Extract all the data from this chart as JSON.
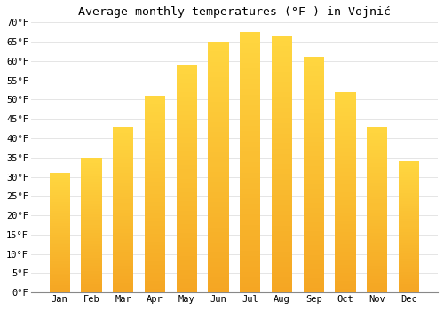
{
  "title": "Average monthly temperatures (°F ) in Vojnić",
  "months": [
    "Jan",
    "Feb",
    "Mar",
    "Apr",
    "May",
    "Jun",
    "Jul",
    "Aug",
    "Sep",
    "Oct",
    "Nov",
    "Dec"
  ],
  "values": [
    31,
    35,
    43,
    51,
    59,
    65,
    67.5,
    66.5,
    61,
    52,
    43,
    34
  ],
  "ylim": [
    0,
    70
  ],
  "yticks": [
    0,
    5,
    10,
    15,
    20,
    25,
    30,
    35,
    40,
    45,
    50,
    55,
    60,
    65,
    70
  ],
  "bar_color_bottom": "#F5A623",
  "bar_color_top": "#FFD740",
  "background_color": "#ffffff",
  "grid_color": "#e0e0e0",
  "title_fontsize": 9.5,
  "tick_fontsize": 7.5
}
